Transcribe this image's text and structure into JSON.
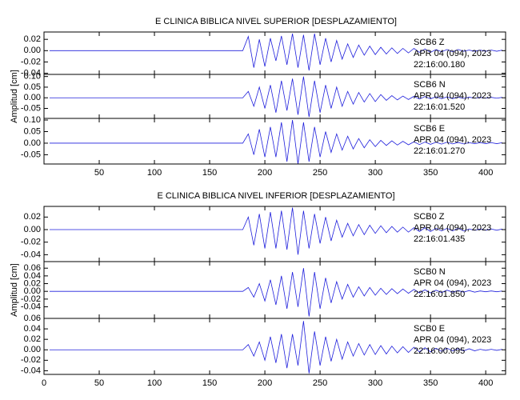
{
  "chart_data": [
    {
      "type": "line",
      "title": "E CLINICA BIBLICA NIVEL SUPERIOR [DESPLAZAMIENTO]",
      "station": "SCB6   Z",
      "date": "APR 04 (094), 2023",
      "time": "22:16:00.180",
      "xlim": [
        0,
        418
      ],
      "xticks": [
        50,
        100,
        150,
        200,
        250,
        300,
        350,
        400
      ],
      "ylim": [
        -0.042,
        0.033
      ],
      "yticks": [
        0.02,
        {
          "value": 0,
          "label": "0.00"
        },
        -0.02,
        -0.04
      ],
      "x": [
        5,
        10,
        15,
        20,
        25,
        30,
        35,
        40,
        45,
        50,
        55,
        60,
        65,
        70,
        75,
        80,
        85,
        90,
        95,
        100,
        105,
        110,
        115,
        120,
        125,
        130,
        135,
        140,
        145,
        150,
        155,
        160,
        165,
        170,
        175,
        180,
        185,
        190,
        195,
        200,
        205,
        210,
        215,
        220,
        225,
        230,
        235,
        240,
        245,
        250,
        255,
        260,
        265,
        270,
        275,
        280,
        285,
        290,
        295,
        300,
        305,
        310,
        315,
        320,
        325,
        330,
        335,
        340,
        345,
        350,
        355,
        360,
        365,
        370,
        375,
        380,
        385,
        390,
        395,
        400,
        405,
        410,
        415
      ],
      "series": [
        {
          "color": "#1f1fdc",
          "values": [
            0,
            0,
            0,
            0,
            0,
            0,
            0,
            0,
            0,
            0,
            0,
            0,
            0,
            0,
            0,
            0,
            0,
            0,
            0,
            0,
            0,
            0,
            0,
            0,
            0,
            0,
            0,
            0,
            0,
            0,
            0,
            0,
            0,
            0,
            0,
            0,
            0.025,
            -0.03,
            0.02,
            -0.028,
            0.022,
            -0.018,
            0.026,
            -0.025,
            0.03,
            -0.03,
            0.028,
            -0.035,
            0.03,
            -0.025,
            0.022,
            -0.02,
            0.018,
            -0.015,
            0.012,
            -0.012,
            0.01,
            -0.008,
            0.008,
            -0.007,
            0.006,
            -0.006,
            0.005,
            -0.005,
            0.004,
            -0.004,
            0.004,
            -0.003,
            0.003,
            -0.003,
            0.002,
            -0.002,
            0.002,
            -0.002,
            0.002,
            -0.001,
            0.001,
            -0.001,
            0.001,
            -0.001,
            0.001,
            -0.001,
            0.001
          ]
        }
      ]
    },
    {
      "type": "line",
      "y_label": "Amplitud [cm]",
      "station": "SCB6   N",
      "date": "APR 04 (094), 2023",
      "time": "22:16:01.520",
      "xlim": [
        0,
        418
      ],
      "xticks": [
        50,
        100,
        150,
        200,
        250,
        300,
        350,
        400
      ],
      "ylim": [
        -0.097,
        0.11
      ],
      "yticks": [
        {
          "value": 0.1,
          "label": "0.10"
        },
        0.05,
        {
          "value": 0,
          "label": "0.00"
        },
        -0.05
      ],
      "x": [
        5,
        10,
        15,
        20,
        25,
        30,
        35,
        40,
        45,
        50,
        55,
        60,
        65,
        70,
        75,
        80,
        85,
        90,
        95,
        100,
        105,
        110,
        115,
        120,
        125,
        130,
        135,
        140,
        145,
        150,
        155,
        160,
        165,
        170,
        175,
        180,
        185,
        190,
        195,
        200,
        205,
        210,
        215,
        220,
        225,
        230,
        235,
        240,
        245,
        250,
        255,
        260,
        265,
        270,
        275,
        280,
        285,
        290,
        295,
        300,
        305,
        310,
        315,
        320,
        325,
        330,
        335,
        340,
        345,
        350,
        355,
        360,
        365,
        370,
        375,
        380,
        385,
        390,
        395,
        400,
        405,
        410,
        415
      ],
      "series": [
        {
          "color": "#1f1fdc",
          "values": [
            0,
            0,
            0,
            0,
            0,
            0,
            0,
            0,
            0,
            0,
            0,
            0,
            0,
            0,
            0,
            0,
            0,
            0,
            0,
            0,
            0,
            0,
            0,
            0,
            0,
            0,
            0,
            0,
            0,
            0,
            0,
            0,
            0,
            0,
            0,
            0,
            0.03,
            -0.04,
            0.05,
            -0.05,
            0.06,
            -0.07,
            0.08,
            -0.06,
            0.09,
            -0.08,
            0.1,
            -0.09,
            0.08,
            -0.07,
            0.06,
            -0.05,
            0.05,
            -0.04,
            0.03,
            -0.03,
            0.025,
            -0.02,
            0.02,
            -0.018,
            0.015,
            -0.012,
            0.01,
            -0.01,
            0.008,
            -0.008,
            0.007,
            -0.006,
            0.006,
            -0.005,
            0.005,
            -0.004,
            0.004,
            -0.004,
            0.003,
            -0.003,
            0.003,
            -0.002,
            0.002,
            -0.002,
            0.002,
            -0.002,
            0.002
          ]
        }
      ]
    },
    {
      "type": "line",
      "station": "SCB6   E",
      "date": "APR 04 (094), 2023",
      "time": "22:16:01.270",
      "xlim": [
        0,
        418
      ],
      "xticks": [
        50,
        100,
        150,
        200,
        250,
        300,
        350,
        400
      ],
      "xtick_labels": true,
      "ylim": [
        -0.09,
        0.107
      ],
      "yticks": [
        {
          "value": 0.1,
          "label": "0.10"
        },
        0.05,
        {
          "value": 0,
          "label": "0.00"
        },
        -0.05
      ],
      "x": [
        5,
        10,
        15,
        20,
        25,
        30,
        35,
        40,
        45,
        50,
        55,
        60,
        65,
        70,
        75,
        80,
        85,
        90,
        95,
        100,
        105,
        110,
        115,
        120,
        125,
        130,
        135,
        140,
        145,
        150,
        155,
        160,
        165,
        170,
        175,
        180,
        185,
        190,
        195,
        200,
        205,
        210,
        215,
        220,
        225,
        230,
        235,
        240,
        245,
        250,
        255,
        260,
        265,
        270,
        275,
        280,
        285,
        290,
        295,
        300,
        305,
        310,
        315,
        320,
        325,
        330,
        335,
        340,
        345,
        350,
        355,
        360,
        365,
        370,
        375,
        380,
        385,
        390,
        395,
        400,
        405,
        410,
        415
      ],
      "series": [
        {
          "color": "#1f1fdc",
          "values": [
            0,
            0,
            0,
            0,
            0,
            0,
            0,
            0,
            0,
            0,
            0,
            0,
            0,
            0,
            0,
            0,
            0,
            0,
            0,
            0,
            0,
            0,
            0,
            0,
            0,
            0,
            0,
            0,
            0,
            0,
            0,
            0,
            0,
            0,
            0,
            0,
            0.04,
            -0.05,
            0.06,
            -0.06,
            0.07,
            -0.06,
            0.09,
            -0.08,
            0.1,
            -0.09,
            0.09,
            -0.08,
            0.07,
            -0.06,
            0.05,
            -0.04,
            0.04,
            -0.03,
            0.03,
            -0.025,
            0.02,
            -0.02,
            0.015,
            -0.015,
            0.012,
            -0.01,
            0.01,
            -0.008,
            0.008,
            -0.007,
            0.006,
            -0.006,
            0.005,
            -0.005,
            0.004,
            -0.004,
            0.004,
            -0.003,
            0.003,
            -0.003,
            0.002,
            -0.002,
            0.002,
            -0.002,
            0.002,
            -0.002,
            0.002
          ]
        }
      ]
    },
    {
      "type": "line",
      "title": "E CLINICA BIBLICA NIVEL INFERIOR [DESPLAZAMIENTO]",
      "station": "SCB0   Z",
      "date": "APR 04 (094), 2023",
      "time": "22:16:01.435",
      "xlim": [
        0,
        418
      ],
      "xticks": [
        0,
        50,
        100,
        150,
        200,
        250,
        300,
        350,
        400
      ],
      "ylim": [
        -0.051,
        0.037
      ],
      "yticks": [
        0.02,
        {
          "value": 0,
          "label": "0.00"
        },
        -0.02,
        -0.04
      ],
      "x": [
        5,
        10,
        15,
        20,
        25,
        30,
        35,
        40,
        45,
        50,
        55,
        60,
        65,
        70,
        75,
        80,
        85,
        90,
        95,
        100,
        105,
        110,
        115,
        120,
        125,
        130,
        135,
        140,
        145,
        150,
        155,
        160,
        165,
        170,
        175,
        180,
        185,
        190,
        195,
        200,
        205,
        210,
        215,
        220,
        225,
        230,
        235,
        240,
        245,
        250,
        255,
        260,
        265,
        270,
        275,
        280,
        285,
        290,
        295,
        300,
        305,
        310,
        315,
        320,
        325,
        330,
        335,
        340,
        345,
        350,
        355,
        360,
        365,
        370,
        375,
        380,
        385,
        390,
        395,
        400,
        405,
        410,
        415
      ],
      "series": [
        {
          "color": "#1f1fdc",
          "values": [
            0,
            0,
            0,
            0,
            0,
            0,
            0,
            0,
            0,
            0,
            0,
            0,
            0,
            0,
            0,
            0,
            0,
            0,
            0,
            0,
            0,
            0,
            0,
            0,
            0,
            0,
            0,
            0,
            0,
            0,
            0,
            0,
            0,
            0,
            0,
            0,
            0.02,
            -0.025,
            0.025,
            -0.03,
            0.028,
            -0.03,
            0.03,
            -0.032,
            0.035,
            -0.04,
            0.03,
            -0.03,
            0.025,
            -0.022,
            0.02,
            -0.018,
            0.015,
            -0.012,
            0.01,
            -0.01,
            0.008,
            -0.008,
            0.007,
            -0.006,
            0.006,
            -0.005,
            0.005,
            -0.004,
            0.004,
            -0.004,
            0.003,
            -0.003,
            0.003,
            -0.003,
            0.002,
            -0.002,
            0.002,
            -0.002,
            0.002,
            -0.002,
            0.001,
            -0.001,
            0.001,
            -0.001,
            0.001,
            -0.001,
            0.001
          ]
        }
      ]
    },
    {
      "type": "line",
      "y_label": "Amplitud [cm]",
      "station": "SCB0   N",
      "date": "APR 04 (094), 2023",
      "time": "22:16:01.850",
      "xlim": [
        0,
        418
      ],
      "xticks": [
        0,
        50,
        100,
        150,
        200,
        250,
        300,
        350,
        400
      ],
      "ylim": [
        -0.07,
        0.077
      ],
      "yticks": [
        0.06,
        0.04,
        0.02,
        {
          "value": 0,
          "label": "0.00"
        },
        -0.02,
        -0.04
      ],
      "x": [
        5,
        10,
        15,
        20,
        25,
        30,
        35,
        40,
        45,
        50,
        55,
        60,
        65,
        70,
        75,
        80,
        85,
        90,
        95,
        100,
        105,
        110,
        115,
        120,
        125,
        130,
        135,
        140,
        145,
        150,
        155,
        160,
        165,
        170,
        175,
        180,
        185,
        190,
        195,
        200,
        205,
        210,
        215,
        220,
        225,
        230,
        235,
        240,
        245,
        250,
        255,
        260,
        265,
        270,
        275,
        280,
        285,
        290,
        295,
        300,
        305,
        310,
        315,
        320,
        325,
        330,
        335,
        340,
        345,
        350,
        355,
        360,
        365,
        370,
        375,
        380,
        385,
        390,
        395,
        400,
        405,
        410,
        415
      ],
      "series": [
        {
          "color": "#1f1fdc",
          "values": [
            0,
            0,
            0,
            0,
            0,
            0,
            0,
            0,
            0,
            0,
            0,
            0,
            0,
            0,
            0,
            0,
            0,
            0,
            0,
            0,
            0,
            0,
            0,
            0,
            0,
            0,
            0,
            0,
            0,
            0,
            0,
            0,
            0,
            0,
            0,
            0,
            0.01,
            -0.015,
            0.02,
            -0.025,
            0.03,
            -0.035,
            0.04,
            -0.045,
            0.05,
            -0.04,
            0.06,
            -0.065,
            0.05,
            -0.045,
            0.035,
            -0.03,
            0.025,
            -0.02,
            0.018,
            -0.015,
            0.012,
            -0.012,
            0.01,
            -0.01,
            0.008,
            -0.008,
            0.007,
            -0.006,
            0.006,
            -0.005,
            0.005,
            -0.004,
            0.004,
            -0.004,
            0.003,
            -0.003,
            0.003,
            -0.002,
            0.002,
            -0.002,
            0.002,
            -0.002,
            0.001,
            -0.001,
            0.001,
            -0.001,
            0.001
          ]
        }
      ]
    },
    {
      "type": "line",
      "station": "SCB0   E",
      "date": "APR 04 (094), 2023",
      "time": "22:16:00.095",
      "xlim": [
        0,
        418
      ],
      "xticks": [
        0,
        50,
        100,
        150,
        200,
        250,
        300,
        350,
        400
      ],
      "xtick_labels": true,
      "ylim": [
        -0.047,
        0.06
      ],
      "yticks": [
        0.06,
        0.04,
        0.02,
        {
          "value": 0,
          "label": "0.00"
        },
        -0.02,
        -0.04
      ],
      "x": [
        5,
        10,
        15,
        20,
        25,
        30,
        35,
        40,
        45,
        50,
        55,
        60,
        65,
        70,
        75,
        80,
        85,
        90,
        95,
        100,
        105,
        110,
        115,
        120,
        125,
        130,
        135,
        140,
        145,
        150,
        155,
        160,
        165,
        170,
        175,
        180,
        185,
        190,
        195,
        200,
        205,
        210,
        215,
        220,
        225,
        230,
        235,
        240,
        245,
        250,
        255,
        260,
        265,
        270,
        275,
        280,
        285,
        290,
        295,
        300,
        305,
        310,
        315,
        320,
        325,
        330,
        335,
        340,
        345,
        350,
        355,
        360,
        365,
        370,
        375,
        380,
        385,
        390,
        395,
        400,
        405,
        410,
        415
      ],
      "series": [
        {
          "color": "#1f1fdc",
          "values": [
            0,
            0,
            0,
            0,
            0,
            0,
            0,
            0,
            0,
            0,
            0,
            0,
            0,
            0,
            0,
            0,
            0,
            0,
            0,
            0,
            0,
            0,
            0,
            0,
            0,
            0,
            0,
            0,
            0,
            0,
            0,
            0,
            0,
            0,
            0,
            0,
            0.01,
            -0.012,
            0.015,
            -0.02,
            0.025,
            -0.025,
            0.03,
            -0.035,
            0.03,
            -0.03,
            0.055,
            -0.045,
            0.035,
            -0.03,
            0.025,
            -0.022,
            0.02,
            -0.018,
            0.015,
            -0.012,
            0.012,
            -0.01,
            0.01,
            -0.009,
            0.008,
            -0.008,
            0.007,
            -0.006,
            0.006,
            -0.005,
            0.005,
            -0.004,
            0.004,
            -0.004,
            0.003,
            -0.003,
            0.003,
            -0.002,
            0.002,
            -0.002,
            0.002,
            -0.002,
            0.001,
            -0.001,
            0.001,
            -0.001,
            0.001
          ]
        }
      ]
    }
  ]
}
